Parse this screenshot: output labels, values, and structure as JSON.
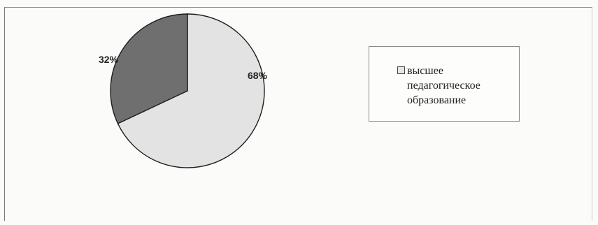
{
  "chart_data": {
    "type": "pie",
    "slices": [
      {
        "name": "высшее педагогическое образование",
        "value": 68,
        "label": "68%",
        "color": "#e3e3e3"
      },
      {
        "value": 32,
        "label": "32%",
        "color": "#6f6f6f"
      }
    ],
    "legend": {
      "placement": "right",
      "entries": [
        "высшее педагогическое образование"
      ]
    }
  }
}
